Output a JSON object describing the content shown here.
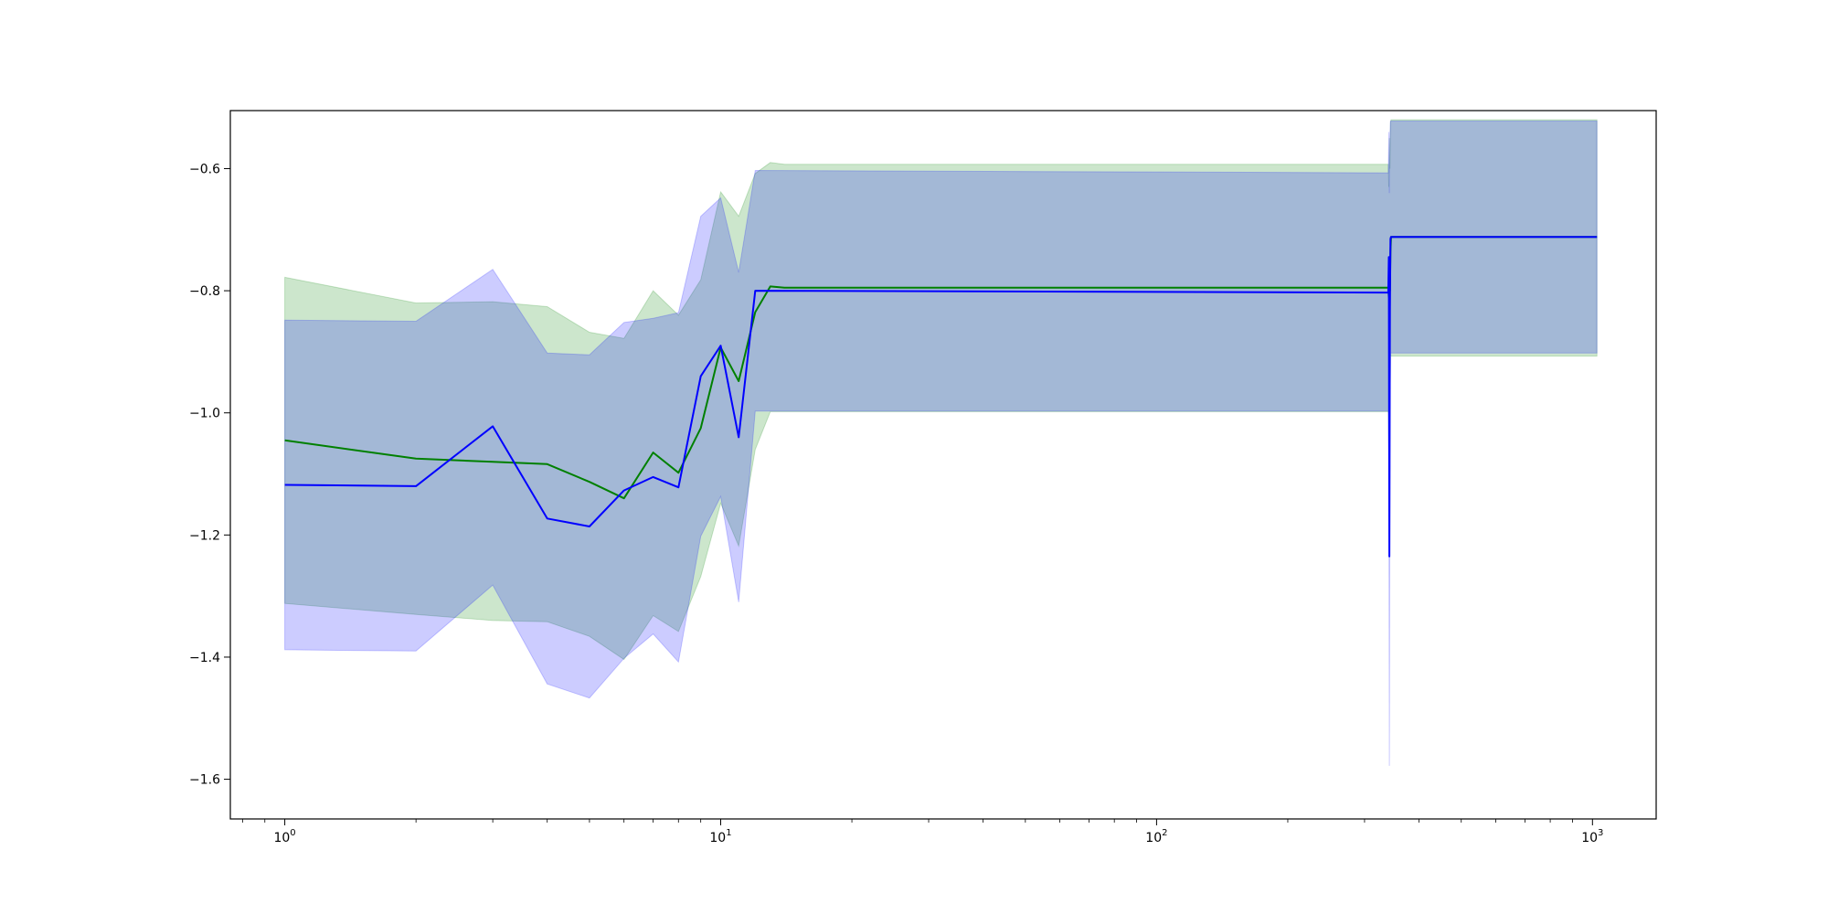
{
  "chart_data": {
    "type": "line",
    "title": "",
    "xlabel": "",
    "ylabel": "",
    "xscale": "log",
    "xlim": [
      0.75,
      1400
    ],
    "ylim": [
      -1.665,
      -0.505
    ],
    "grid": false,
    "x_ticks": [
      {
        "value": 1,
        "base": "10",
        "exp": "0"
      },
      {
        "value": 10,
        "base": "10",
        "exp": "1"
      },
      {
        "value": 100,
        "base": "10",
        "exp": "2"
      },
      {
        "value": 1000,
        "base": "10",
        "exp": "3"
      }
    ],
    "y_ticks": [
      {
        "value": -1.6,
        "label": "−1.6"
      },
      {
        "value": -1.4,
        "label": "−1.4"
      },
      {
        "value": -1.2,
        "label": "−1.2"
      },
      {
        "value": -1.0,
        "label": "−1.0"
      },
      {
        "value": -0.8,
        "label": "−0.8"
      },
      {
        "value": -0.6,
        "label": "−0.6"
      }
    ],
    "series": [
      {
        "color": "#008000",
        "band_color": "#008000",
        "band_opacity": 0.2,
        "x": [
          1,
          2,
          3,
          4,
          5,
          6,
          7,
          8,
          9,
          10,
          11,
          12,
          13,
          14,
          340,
          341,
          342,
          343,
          344,
          345,
          1024
        ],
        "mean": [
          -1.045,
          -1.075,
          -1.08,
          -1.084,
          -1.113,
          -1.14,
          -1.065,
          -1.098,
          -1.025,
          -0.893,
          -0.948,
          -0.835,
          -0.793,
          -0.795,
          -0.795,
          -0.81,
          -0.79,
          -0.8,
          -0.735,
          -0.712,
          -0.712
        ],
        "upper": [
          -0.778,
          -0.82,
          -0.818,
          -0.826,
          -0.868,
          -0.878,
          -0.8,
          -0.84,
          -0.782,
          -0.638,
          -0.678,
          -0.608,
          -0.59,
          -0.593,
          -0.593,
          -0.63,
          -0.55,
          -0.6,
          -0.525,
          -0.52,
          -0.52
        ],
        "lower": [
          -1.312,
          -1.33,
          -1.34,
          -1.342,
          -1.366,
          -1.404,
          -1.332,
          -1.358,
          -1.268,
          -1.148,
          -1.218,
          -1.06,
          -0.998,
          -0.998,
          -0.998,
          -1.06,
          -0.95,
          -1.0,
          -0.905,
          -0.907,
          -0.907
        ]
      },
      {
        "color": "#0000ff",
        "band_color": "#0000ff",
        "band_opacity": 0.2,
        "x": [
          1,
          2,
          3,
          4,
          5,
          6,
          7,
          8,
          9,
          10,
          11,
          12,
          340,
          341,
          342,
          343,
          344,
          345,
          1024
        ],
        "mean": [
          -1.118,
          -1.12,
          -1.022,
          -1.173,
          -1.186,
          -1.127,
          -1.105,
          -1.122,
          -0.94,
          -0.89,
          -1.04,
          -0.8,
          -0.803,
          -0.745,
          -1.235,
          -0.83,
          -0.715,
          -0.712,
          -0.712
        ],
        "upper": [
          -0.848,
          -0.85,
          -0.765,
          -0.902,
          -0.905,
          -0.852,
          -0.845,
          -0.836,
          -0.678,
          -0.648,
          -0.77,
          -0.603,
          -0.607,
          -0.54,
          -0.64,
          -0.55,
          -0.522,
          -0.522,
          -0.522
        ],
        "lower": [
          -1.388,
          -1.39,
          -1.282,
          -1.444,
          -1.467,
          -1.402,
          -1.362,
          -1.408,
          -1.202,
          -1.137,
          -1.31,
          -0.997,
          -0.997,
          -1.0,
          -1.578,
          -1.0,
          -0.902,
          -0.902,
          -0.902
        ]
      }
    ]
  }
}
